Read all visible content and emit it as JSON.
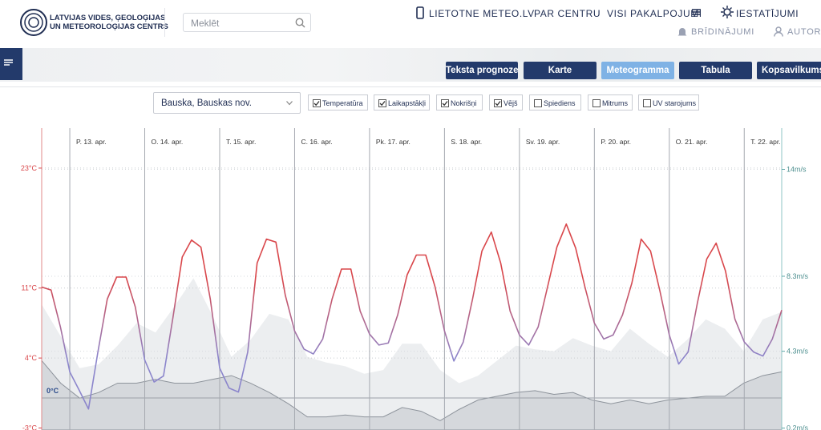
{
  "header": {
    "logo_line1": "LATVIJAS VIDES, ĢEOLOĢIJAS",
    "logo_line2": "UN METEOROLOĢIJAS CENTRS",
    "search_placeholder": "Meklēt",
    "nav": [
      "LIETOTNE METEO.LV",
      "PAR CENTRU",
      "VISI PAKALPOJUMI",
      "IESTATĪJUMI"
    ],
    "nav2": [
      "BRĪDINĀJUMI",
      "AUTORI"
    ]
  },
  "tabs": {
    "items": [
      "Teksta prognoze",
      "Karte",
      "Meteogramma",
      "Tabula",
      "Kopsavilkums"
    ],
    "active": 2
  },
  "location": "Bauska, Bauskas nov.",
  "checkboxes": [
    {
      "label": "Temperatūra",
      "checked": true
    },
    {
      "label": "Laikapstākļi",
      "checked": true
    },
    {
      "label": "Nokrišņi",
      "checked": true
    },
    {
      "label": "Vējš",
      "checked": true
    },
    {
      "label": "Spiediens",
      "checked": false
    },
    {
      "label": "Mitrums",
      "checked": false
    },
    {
      "label": "UV starojums",
      "checked": false
    }
  ],
  "chart_data": {
    "type": "line",
    "days": [
      "P. 13. apr.",
      "O. 14. apr.",
      "T. 15. apr.",
      "C. 16. apr.",
      "Pk. 17. apr.",
      "S. 18. apr.",
      "Sv. 19. apr.",
      "P. 20. apr.",
      "O. 21. apr.",
      "T. 22. apr."
    ],
    "ylim": [
      -3.2,
      27
    ],
    "yticks": [
      {
        "value": -3,
        "label": "-3°C"
      },
      {
        "value": 4,
        "label": "4°C"
      },
      {
        "value": 11,
        "label": "11°C"
      },
      {
        "value": 23,
        "label": "23°C"
      }
    ],
    "zero_label": {
      "value": 0,
      "label": "0°C"
    },
    "y2lim": [
      0.1,
      16.2
    ],
    "y2ticks": [
      {
        "value": 0.2,
        "label": "0.2m/s"
      },
      {
        "value": 4.3,
        "label": "4.3m/s"
      },
      {
        "value": 8.3,
        "label": "8.3m/s"
      },
      {
        "value": 14,
        "label": "14m/s"
      }
    ],
    "series": [
      {
        "color": "#d9464a",
        "color_low": "#8c86cc",
        "values": [
          11.1,
          10.8,
          7.1,
          2.6,
          0.8,
          -1.1,
          4.6,
          9.9,
          12.1,
          12.1,
          9.1,
          3.8,
          1.6,
          2.2,
          8.0,
          14.1,
          15.8,
          15.1,
          9.9,
          3.0,
          1.0,
          0.6,
          4.6,
          13.5,
          15.9,
          15.6,
          10.3,
          6.7,
          4.9,
          4.4,
          5.9,
          9.9,
          12.9,
          12.9,
          8.7,
          6.4,
          5.3,
          5.5,
          8.3,
          12.3,
          14.3,
          14.3,
          11.1,
          6.7,
          3.7,
          5.6,
          9.9,
          14.7,
          16.6,
          13.5,
          8.7,
          6.3,
          5.3,
          7.1,
          11.1,
          15.1,
          17.4,
          15.0,
          11.1,
          7.5,
          5.9,
          6.3,
          8.3,
          11.5,
          15.9,
          14.7,
          10.7,
          6.3,
          3.4,
          4.6,
          9.5,
          13.9,
          15.5,
          12.7,
          7.9,
          5.6,
          4.6,
          4.2,
          5.9,
          8.8
        ]
      },
      {
        "axis": "y2",
        "color": "#eceef0",
        "values": [
          6.8,
          5.1,
          3.4,
          3.6,
          4.6,
          5.8,
          5.3,
          6.7,
          8.2,
          6.2,
          4.0,
          4.9,
          6.3,
          6.0,
          4.0,
          3.7,
          3.5,
          3.1,
          3.3,
          4.7,
          4.7,
          3.3,
          2.6,
          3.0,
          3.8,
          4.6,
          4.4,
          4.3,
          5.0,
          4.6,
          4.3,
          5.5,
          4.7,
          4.0,
          4.9,
          6.0,
          5.5,
          4.3,
          6.0,
          6.4
        ]
      },
      {
        "axis": "y2",
        "color": "#d5d8dc",
        "values": [
          3.8,
          2.6,
          1.8,
          2.1,
          2.6,
          2.6,
          2.8,
          2.6,
          2.6,
          2.8,
          3.0,
          2.6,
          2.1,
          1.5,
          0.8,
          0.8,
          0.9,
          0.8,
          0.8,
          1.3,
          1.1,
          0.6,
          1.2,
          1.7,
          1.9,
          2.1,
          2.2,
          2.0,
          2.1,
          1.7,
          1.5,
          1.7,
          1.5,
          1.7,
          1.8,
          1.9,
          1.9,
          2.6,
          3.0,
          3.2
        ]
      }
    ]
  }
}
